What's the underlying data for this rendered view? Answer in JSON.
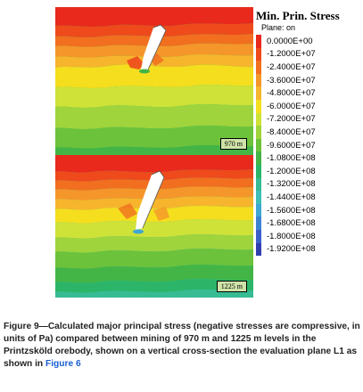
{
  "legend": {
    "title": "Min. Prin. Stress",
    "plane_label": "Plane: on",
    "entries": [
      {
        "label": "0.0000E+00",
        "color": "#e8291c"
      },
      {
        "label": "-1.2000E+07",
        "color": "#ee4a1c"
      },
      {
        "label": "-2.4000E+07",
        "color": "#f16f1f"
      },
      {
        "label": "-3.6000E+07",
        "color": "#f5962a"
      },
      {
        "label": "-4.8000E+07",
        "color": "#f6b52c"
      },
      {
        "label": "-6.0000E+07",
        "color": "#f5de1e"
      },
      {
        "label": "-7.2000E+07",
        "color": "#cfe238"
      },
      {
        "label": "-8.4000E+07",
        "color": "#9fd43d"
      },
      {
        "label": "-9.6000E+07",
        "color": "#6cc23b"
      },
      {
        "label": "-1.0800E+08",
        "color": "#43b546"
      },
      {
        "label": "-1.2000E+08",
        "color": "#2cb569"
      },
      {
        "label": "-1.3200E+08",
        "color": "#36bb93"
      },
      {
        "label": "-1.4400E+08",
        "color": "#3fbfb7"
      },
      {
        "label": "-1.5600E+08",
        "color": "#3fa7d3"
      },
      {
        "label": "-1.6800E+08",
        "color": "#3c84d2"
      },
      {
        "label": "-1.8000E+08",
        "color": "#3a5fc9"
      },
      {
        "label": "-1.9200E+08",
        "color": "#2f3fae"
      }
    ]
  },
  "panels": {
    "top_label": "970 m",
    "bottom_label": "1225 m"
  },
  "caption": {
    "text": "Figure 9—Calculated major principal stress (negative stresses are compressive, in units of Pa) compared between mining of 970 m  and 1225 m levels in the Printzsköld orebody, shown on a vertical cross-section the evaluation plane L1 as shown in ",
    "link": "Figure 6"
  }
}
